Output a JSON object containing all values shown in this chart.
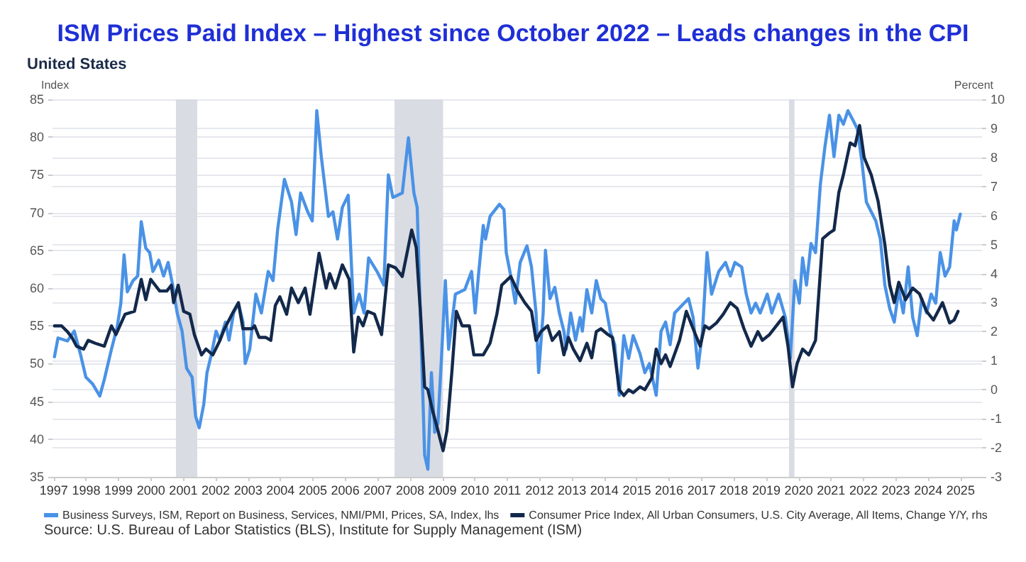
{
  "chart_data": {
    "type": "line",
    "title": "ISM Prices Paid Index – Highest since October 2022 – Leads changes in the CPI",
    "subtitle": "United States",
    "ylabel": "Index",
    "y2label": "Percent",
    "xlim": [
      1997.36,
      2026.06
    ],
    "xticks": [
      {
        "value": 1997.4,
        "label": "1997"
      },
      {
        "value": 1998.4,
        "label": "1998"
      },
      {
        "value": 1999.4,
        "label": "1999"
      },
      {
        "value": 2000.4,
        "label": "2000"
      },
      {
        "value": 2001.4,
        "label": "2001"
      },
      {
        "value": 2002.4,
        "label": "2002"
      },
      {
        "value": 2003.4,
        "label": "2003"
      },
      {
        "value": 2004.4,
        "label": "2004"
      },
      {
        "value": 2005.4,
        "label": "2005"
      },
      {
        "value": 2006.4,
        "label": "2006"
      },
      {
        "value": 2007.4,
        "label": "2007"
      },
      {
        "value": 2008.4,
        "label": "2008"
      },
      {
        "value": 2009.4,
        "label": "2009"
      },
      {
        "value": 2010.4,
        "label": "2010"
      },
      {
        "value": 2011.4,
        "label": "2011"
      },
      {
        "value": 2012.4,
        "label": "2012"
      },
      {
        "value": 2013.4,
        "label": "2013"
      },
      {
        "value": 2014.4,
        "label": "2014"
      },
      {
        "value": 2015.4,
        "label": "2015"
      },
      {
        "value": 2016.4,
        "label": "2016"
      },
      {
        "value": 2017.4,
        "label": "2017"
      },
      {
        "value": 2018.4,
        "label": "2018"
      },
      {
        "value": 2019.4,
        "label": "2019"
      },
      {
        "value": 2020.4,
        "label": "2020"
      },
      {
        "value": 2021.4,
        "label": "2021"
      },
      {
        "value": 2022.4,
        "label": "2022"
      },
      {
        "value": 2023.4,
        "label": "2023"
      },
      {
        "value": 2024.4,
        "label": "2024"
      },
      {
        "value": 2025.4,
        "label": "2025"
      }
    ],
    "ylim": [
      35,
      85
    ],
    "yticks": [
      35,
      40,
      45,
      50,
      55,
      60,
      65,
      70,
      75,
      80,
      85
    ],
    "y2lim": [
      -3,
      10
    ],
    "y2ticks": [
      -3,
      -2,
      -1,
      0,
      1,
      2,
      3,
      4,
      5,
      6,
      7,
      8,
      9,
      10
    ],
    "grid": "y",
    "legend": "bottom",
    "marker": "none",
    "line_style": "solid",
    "bands": [
      {
        "axis": "x",
        "from": 2001.17,
        "to": 2001.83,
        "color": "#d9dce3"
      },
      {
        "axis": "x",
        "from": 2007.92,
        "to": 2009.42,
        "color": "#d9dce3"
      },
      {
        "axis": "x",
        "from": 2020.1,
        "to": 2020.27,
        "color": "#d9dce3"
      }
    ],
    "series": [
      {
        "name": "Business Surveys, ISM, Report on Business, Services, NMI/PMI, Prices, SA, Index, lhs",
        "color": "#4a92e6",
        "axis": "y",
        "x": [
          1997.42,
          1997.53,
          1997.82,
          1998.03,
          1998.22,
          1998.39,
          1998.6,
          1998.82,
          1998.96,
          1999.18,
          1999.36,
          1999.47,
          1999.57,
          1999.67,
          1999.85,
          1999.99,
          2000.1,
          2000.24,
          2000.36,
          2000.46,
          2000.64,
          2000.79,
          2000.93,
          2001.07,
          2001.21,
          2001.36,
          2001.5,
          2001.67,
          2001.78,
          2001.89,
          2002.03,
          2002.13,
          2002.27,
          2002.41,
          2002.53,
          2002.7,
          2002.81,
          2002.95,
          2003.1,
          2003.24,
          2003.31,
          2003.45,
          2003.64,
          2003.81,
          2004.02,
          2004.17,
          2004.31,
          2004.52,
          2004.74,
          2004.88,
          2005.02,
          2005.24,
          2005.38,
          2005.52,
          2005.66,
          2005.88,
          2006.02,
          2006.16,
          2006.31,
          2006.49,
          2006.66,
          2006.83,
          2006.98,
          2007.12,
          2007.38,
          2007.59,
          2007.73,
          2007.87,
          2008.16,
          2008.35,
          2008.52,
          2008.62,
          2008.73,
          2008.85,
          2008.95,
          2009.06,
          2009.16,
          2009.26,
          2009.37,
          2009.49,
          2009.59,
          2009.8,
          2010.09,
          2010.3,
          2010.41,
          2010.51,
          2010.66,
          2010.73,
          2010.87,
          2011.16,
          2011.3,
          2011.37,
          2011.51,
          2011.65,
          2011.8,
          2012.01,
          2012.15,
          2012.29,
          2012.37,
          2012.51,
          2012.58,
          2012.72,
          2012.87,
          2013.01,
          2013.15,
          2013.22,
          2013.36,
          2013.51,
          2013.65,
          2013.72,
          2013.86,
          2014.01,
          2014.15,
          2014.29,
          2014.43,
          2014.58,
          2014.72,
          2014.86,
          2015.0,
          2015.15,
          2015.29,
          2015.5,
          2015.65,
          2015.79,
          2016.0,
          2016.15,
          2016.29,
          2016.43,
          2016.57,
          2016.86,
          2017.0,
          2017.14,
          2017.29,
          2017.43,
          2017.57,
          2017.71,
          2017.93,
          2018.14,
          2018.29,
          2018.43,
          2018.64,
          2018.78,
          2018.93,
          2019.07,
          2019.21,
          2019.43,
          2019.57,
          2019.78,
          2019.99,
          2020.14,
          2020.28,
          2020.42,
          2020.52,
          2020.64,
          2020.78,
          2020.92,
          2021.07,
          2021.21,
          2021.35,
          2021.49,
          2021.64,
          2021.78,
          2021.92,
          2022.07,
          2022.21,
          2022.35,
          2022.49,
          2022.64,
          2022.78,
          2022.92,
          2023.06,
          2023.21,
          2023.35,
          2023.49,
          2023.63,
          2023.78,
          2023.92,
          2024.06,
          2024.2,
          2024.35,
          2024.49,
          2024.63,
          2024.77,
          2024.92,
          2025.06,
          2025.2,
          2025.27,
          2025.39
        ],
        "values": [
          50.9,
          53.4,
          53.0,
          54.3,
          51.3,
          48.2,
          47.3,
          45.7,
          47.9,
          51.9,
          54.9,
          58.0,
          64.4,
          59.5,
          61.0,
          61.6,
          68.8,
          65.3,
          64.7,
          62.2,
          63.7,
          61.6,
          63.4,
          60.4,
          56.7,
          54.3,
          49.4,
          48.2,
          43.0,
          41.5,
          44.6,
          48.8,
          51.3,
          54.3,
          53.1,
          55.5,
          53.1,
          56.7,
          58.0,
          55.5,
          50.0,
          51.9,
          59.2,
          56.7,
          62.2,
          61.0,
          67.7,
          74.4,
          71.4,
          67.1,
          72.6,
          70.1,
          68.9,
          83.5,
          77.4,
          69.5,
          70.1,
          66.5,
          70.7,
          72.3,
          56.7,
          59.2,
          56.7,
          64.0,
          62.2,
          60.4,
          75.0,
          72.0,
          72.6,
          79.9,
          72.6,
          70.7,
          54.9,
          37.9,
          36.0,
          48.8,
          40.9,
          42.1,
          50.7,
          61.0,
          51.9,
          59.2,
          59.8,
          62.2,
          56.7,
          61.6,
          68.3,
          66.5,
          69.5,
          71.1,
          70.4,
          64.7,
          61.6,
          58.0,
          63.4,
          65.6,
          62.8,
          56.7,
          48.8,
          56.7,
          65.0,
          58.6,
          60.1,
          56.7,
          54.3,
          51.9,
          56.7,
          53.1,
          56.1,
          54.3,
          59.8,
          56.7,
          61.0,
          58.6,
          58.0,
          54.3,
          52.5,
          45.8,
          53.7,
          50.7,
          53.7,
          51.3,
          48.8,
          50.0,
          45.8,
          54.3,
          55.5,
          52.5,
          56.7,
          58.0,
          58.6,
          56.1,
          49.4,
          54.3,
          64.7,
          59.2,
          62.2,
          63.4,
          61.6,
          63.4,
          62.8,
          59.2,
          56.7,
          58.0,
          56.7,
          59.2,
          56.7,
          59.2,
          56.1,
          50.7,
          61.0,
          58.0,
          64.0,
          60.4,
          65.9,
          64.7,
          73.8,
          78.7,
          82.9,
          77.4,
          82.9,
          81.7,
          83.5,
          82.3,
          81.1,
          76.8,
          71.4,
          70.1,
          68.9,
          66.5,
          60.4,
          57.3,
          55.5,
          59.8,
          56.7,
          62.8,
          56.1,
          53.7,
          58.6,
          56.7,
          59.2,
          58.0,
          64.7,
          61.6,
          62.8,
          68.9,
          67.7,
          69.8
        ]
      },
      {
        "name": "Consumer Price Index, All Urban Consumers, U.S. City Average, All Items, Change Y/Y, rhs",
        "color": "#13294b",
        "axis": "y2",
        "x": [
          1997.42,
          1997.64,
          1997.82,
          1997.96,
          1998.1,
          1998.32,
          1998.46,
          1998.68,
          1998.96,
          1999.18,
          1999.32,
          1999.6,
          1999.89,
          2000.1,
          2000.24,
          2000.39,
          2000.67,
          2000.89,
          2001.03,
          2001.1,
          2001.24,
          2001.41,
          2001.6,
          2001.74,
          2001.96,
          2002.1,
          2002.31,
          2002.53,
          2002.67,
          2002.95,
          2003.1,
          2003.24,
          2003.52,
          2003.6,
          2003.74,
          2003.95,
          2004.1,
          2004.24,
          2004.38,
          2004.59,
          2004.74,
          2004.95,
          2005.16,
          2005.31,
          2005.59,
          2005.81,
          2005.92,
          2006.09,
          2006.31,
          2006.52,
          2006.66,
          2006.8,
          2006.95,
          2007.09,
          2007.3,
          2007.52,
          2007.73,
          2007.95,
          2008.16,
          2008.45,
          2008.59,
          2008.73,
          2008.85,
          2008.95,
          2009.09,
          2009.26,
          2009.42,
          2009.54,
          2009.69,
          2009.83,
          2010.01,
          2010.23,
          2010.37,
          2010.66,
          2010.87,
          2011.08,
          2011.23,
          2011.51,
          2011.72,
          2011.94,
          2012.15,
          2012.29,
          2012.44,
          2012.65,
          2012.79,
          2013.01,
          2013.15,
          2013.29,
          2013.44,
          2013.65,
          2013.86,
          2014.01,
          2014.15,
          2014.29,
          2014.51,
          2014.65,
          2014.86,
          2015.0,
          2015.15,
          2015.29,
          2015.5,
          2015.65,
          2015.86,
          2016.0,
          2016.15,
          2016.29,
          2016.43,
          2016.72,
          2016.93,
          2017.14,
          2017.36,
          2017.5,
          2017.64,
          2017.86,
          2018.07,
          2018.29,
          2018.5,
          2018.71,
          2018.93,
          2019.14,
          2019.28,
          2019.5,
          2019.71,
          2019.92,
          2020.07,
          2020.21,
          2020.35,
          2020.52,
          2020.71,
          2020.92,
          2021.14,
          2021.35,
          2021.49,
          2021.64,
          2021.78,
          2021.99,
          2022.14,
          2022.28,
          2022.42,
          2022.64,
          2022.85,
          2023.06,
          2023.21,
          2023.35,
          2023.49,
          2023.7,
          2023.92,
          2024.13,
          2024.35,
          2024.56,
          2024.84,
          2025.06,
          2025.2,
          2025.32
        ],
        "values": [
          2.2,
          2.2,
          2.0,
          1.8,
          1.5,
          1.4,
          1.7,
          1.6,
          1.5,
          2.2,
          1.9,
          2.6,
          2.7,
          3.8,
          3.1,
          3.8,
          3.4,
          3.4,
          3.6,
          3.0,
          3.6,
          2.7,
          2.6,
          1.9,
          1.2,
          1.4,
          1.2,
          1.7,
          2.1,
          2.7,
          3.0,
          2.1,
          2.1,
          2.2,
          1.8,
          1.8,
          1.7,
          2.9,
          3.2,
          2.6,
          3.5,
          3.0,
          3.5,
          2.6,
          4.7,
          3.5,
          4.0,
          3.5,
          4.3,
          3.8,
          1.3,
          2.5,
          2.2,
          2.7,
          2.6,
          1.9,
          4.3,
          4.2,
          3.9,
          5.5,
          4.9,
          2.5,
          0.1,
          0.0,
          -0.7,
          -1.4,
          -2.1,
          -1.4,
          0.6,
          2.7,
          2.2,
          2.2,
          1.2,
          1.2,
          1.6,
          2.6,
          3.6,
          3.9,
          3.4,
          3.0,
          2.7,
          1.7,
          2.0,
          2.2,
          1.7,
          2.0,
          1.2,
          1.8,
          1.4,
          1.0,
          1.6,
          1.1,
          2.0,
          2.1,
          1.9,
          1.8,
          0.0,
          -0.2,
          0.0,
          -0.1,
          0.1,
          0.0,
          0.4,
          1.4,
          0.9,
          1.2,
          0.8,
          1.7,
          2.7,
          2.1,
          1.5,
          2.2,
          2.1,
          2.3,
          2.6,
          3.0,
          2.8,
          2.1,
          1.5,
          2.0,
          1.7,
          1.9,
          2.2,
          2.5,
          1.5,
          0.1,
          0.9,
          1.4,
          1.2,
          1.7,
          5.2,
          5.4,
          5.5,
          6.8,
          7.4,
          8.5,
          8.4,
          9.1,
          8.0,
          7.4,
          6.5,
          5.0,
          3.6,
          3.0,
          3.7,
          3.1,
          3.5,
          3.3,
          2.7,
          2.4,
          3.0,
          2.3,
          2.4,
          2.7
        ]
      }
    ],
    "annotations": [
      "Source: U.S. Bureau of Labor Statistics (BLS), Institute for Supply Management (ISM)"
    ]
  }
}
